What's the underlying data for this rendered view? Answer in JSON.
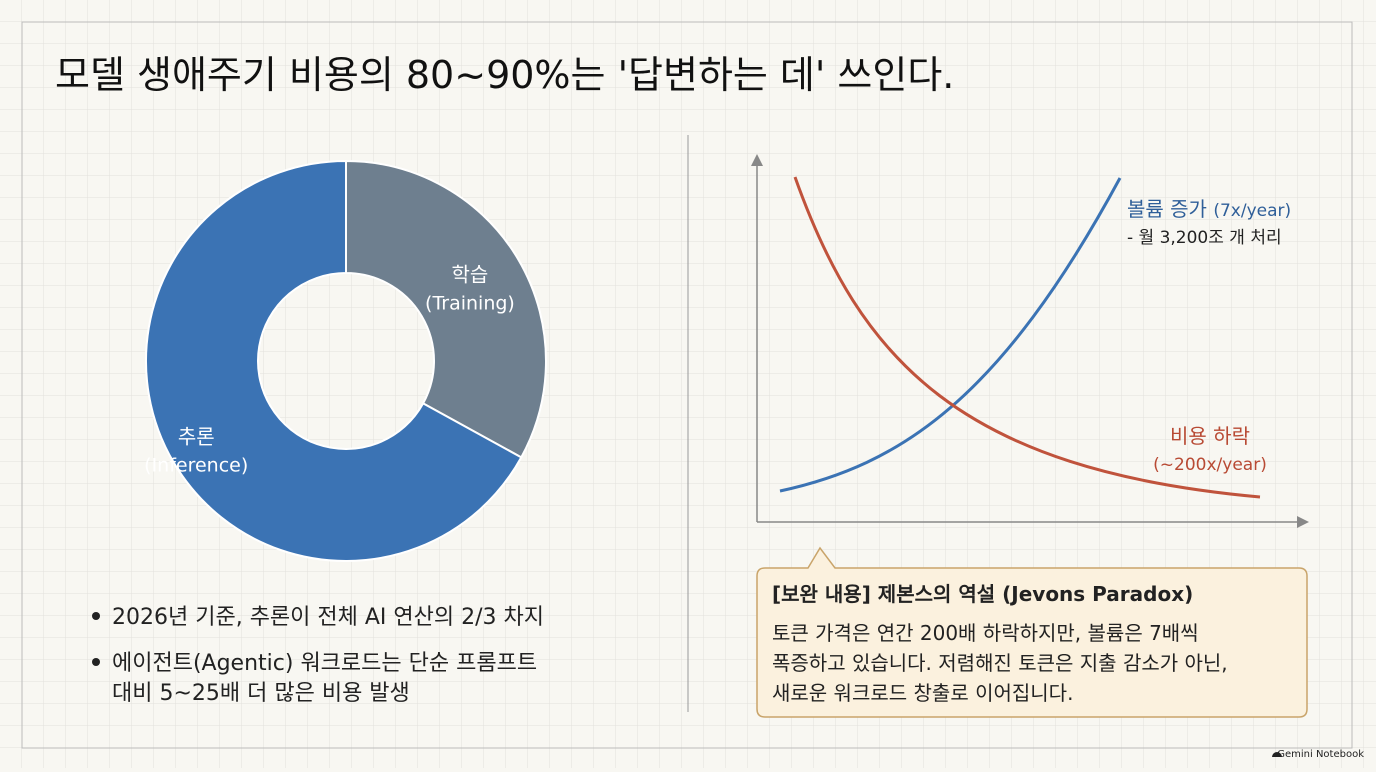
{
  "title": "모델 생애주기 비용의 80~90%는 '답변하는 데' 쓰인다.",
  "donut": {
    "type": "pie",
    "slices": [
      {
        "name": "학습",
        "sub": "(Training)",
        "value": 33,
        "color": "#6e7f8f"
      },
      {
        "name": "추론",
        "sub": "(Inference)",
        "value": 67,
        "color": "#3b73b4"
      }
    ]
  },
  "bullets": [
    [
      "2026년 기준, 추론이 전체 AI 연산의 2/3 차지"
    ],
    [
      "에이전트(Agentic) 워크로드는 단순 프롬프트",
      "대비 5~25배 더 많은 비용 발생"
    ]
  ],
  "trend": {
    "volume": {
      "label": "볼륨 증가",
      "rate": "(7x/year)",
      "note": "- 월 3,200조 개 처리"
    },
    "cost": {
      "label": "비용 하락",
      "rate": "(~200x/year)"
    }
  },
  "callout": {
    "title": "[보완 내용] 제본스의 역설 (Jevons Paradox)",
    "lines": [
      "토큰 가격은 연간 200배 하락하지만, 볼륨은 7배씩",
      "폭증하고 있습니다. 저렴해진 토큰은 지출 감소가 아닌,",
      "새로운 워크로드 창출로 이어집니다."
    ]
  },
  "footer": "Gemini Notebook"
}
